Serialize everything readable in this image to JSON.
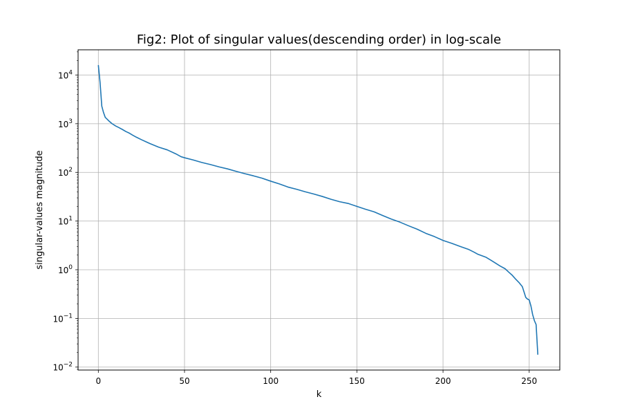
{
  "chart_data": {
    "type": "line",
    "title": "Fig2: Plot of singular values(descending order) in log-scale",
    "xlabel": "k",
    "ylabel": "singular-values magnitude",
    "xlim": [
      -11.75,
      267.75
    ],
    "ylim": [
      0.0087,
      33000
    ],
    "yscale": "log",
    "grid": true,
    "x_ticks": [
      0,
      50,
      100,
      150,
      200,
      250
    ],
    "y_ticks": [
      {
        "value": 0.01,
        "base": "10",
        "exp": "−2"
      },
      {
        "value": 0.1,
        "base": "10",
        "exp": "−1"
      },
      {
        "value": 1,
        "base": "10",
        "exp": "0"
      },
      {
        "value": 10,
        "base": "10",
        "exp": "1"
      },
      {
        "value": 100,
        "base": "10",
        "exp": "2"
      },
      {
        "value": 1000,
        "base": "10",
        "exp": "3"
      },
      {
        "value": 10000,
        "base": "10",
        "exp": "4"
      }
    ],
    "line_color": "#1f77b4",
    "series": [
      {
        "points": [
          [
            0,
            16000
          ],
          [
            1,
            7000
          ],
          [
            2,
            2300
          ],
          [
            3,
            1700
          ],
          [
            4,
            1350
          ],
          [
            5,
            1250
          ],
          [
            6,
            1150
          ],
          [
            8,
            1000
          ],
          [
            10,
            900
          ],
          [
            12,
            830
          ],
          [
            14,
            760
          ],
          [
            16,
            690
          ],
          [
            18,
            640
          ],
          [
            20,
            580
          ],
          [
            22,
            530
          ],
          [
            25,
            470
          ],
          [
            28,
            420
          ],
          [
            30,
            390
          ],
          [
            35,
            330
          ],
          [
            40,
            290
          ],
          [
            45,
            240
          ],
          [
            48,
            210
          ],
          [
            50,
            200
          ],
          [
            55,
            180
          ],
          [
            60,
            160
          ],
          [
            65,
            145
          ],
          [
            70,
            130
          ],
          [
            75,
            118
          ],
          [
            80,
            105
          ],
          [
            85,
            94
          ],
          [
            90,
            85
          ],
          [
            95,
            76
          ],
          [
            100,
            66
          ],
          [
            105,
            58
          ],
          [
            110,
            50
          ],
          [
            115,
            45
          ],
          [
            120,
            40
          ],
          [
            125,
            36
          ],
          [
            130,
            32
          ],
          [
            135,
            28
          ],
          [
            140,
            25
          ],
          [
            145,
            23
          ],
          [
            150,
            20
          ],
          [
            155,
            17.5
          ],
          [
            160,
            15.5
          ],
          [
            165,
            13
          ],
          [
            170,
            11
          ],
          [
            175,
            9.5
          ],
          [
            180,
            8
          ],
          [
            185,
            6.8
          ],
          [
            190,
            5.6
          ],
          [
            195,
            4.8
          ],
          [
            200,
            4.0
          ],
          [
            205,
            3.5
          ],
          [
            210,
            3.0
          ],
          [
            215,
            2.6
          ],
          [
            218,
            2.3
          ],
          [
            220,
            2.1
          ],
          [
            225,
            1.8
          ],
          [
            228,
            1.55
          ],
          [
            230,
            1.4
          ],
          [
            233,
            1.2
          ],
          [
            236,
            1.05
          ],
          [
            238,
            0.9
          ],
          [
            240,
            0.78
          ],
          [
            242,
            0.65
          ],
          [
            244,
            0.55
          ],
          [
            246,
            0.45
          ],
          [
            247,
            0.35
          ],
          [
            248,
            0.27
          ],
          [
            249,
            0.25
          ],
          [
            250,
            0.24
          ],
          [
            251,
            0.18
          ],
          [
            252,
            0.12
          ],
          [
            253,
            0.09
          ],
          [
            254,
            0.075
          ],
          [
            255,
            0.018
          ]
        ]
      }
    ]
  }
}
